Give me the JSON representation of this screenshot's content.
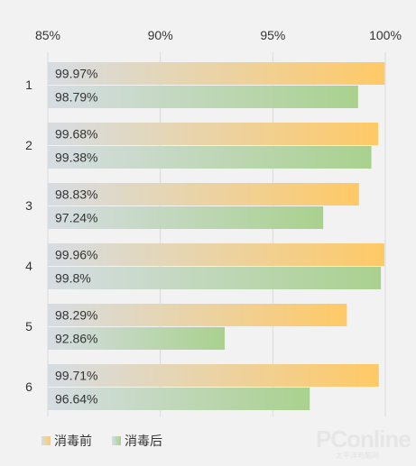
{
  "chart_data": {
    "type": "bar",
    "orientation": "horizontal",
    "categories": [
      "1",
      "2",
      "3",
      "4",
      "5",
      "6"
    ],
    "series": [
      {
        "name": "消毒前",
        "values": [
          99.97,
          99.68,
          98.83,
          99.96,
          98.29,
          99.71
        ],
        "labels": [
          "99.97%",
          "99.68%",
          "98.83%",
          "99.96%",
          "98.29%",
          "99.71%"
        ],
        "color_start": "#d6dde3",
        "color_end": "#ffc966"
      },
      {
        "name": "消毒后",
        "values": [
          98.79,
          99.38,
          97.24,
          99.8,
          92.86,
          96.64
        ],
        "labels": [
          "98.79%",
          "99.38%",
          "97.24%",
          "99.8%",
          "92.86%",
          "96.64%"
        ],
        "color_start": "#d6dde3",
        "color_end": "#a9d18e"
      }
    ],
    "xlim": [
      85,
      100
    ],
    "xticks": [
      85,
      90,
      95,
      100
    ],
    "xtick_labels": [
      "85%",
      "90%",
      "95%",
      "100%"
    ],
    "grid": true,
    "legend_position": "bottom-left",
    "highlight_label_color": "#c00000",
    "highlight": {
      "series": 1,
      "index": 4
    }
  },
  "watermark": {
    "text": "PConline",
    "subtext": "太平洋电脑网"
  }
}
